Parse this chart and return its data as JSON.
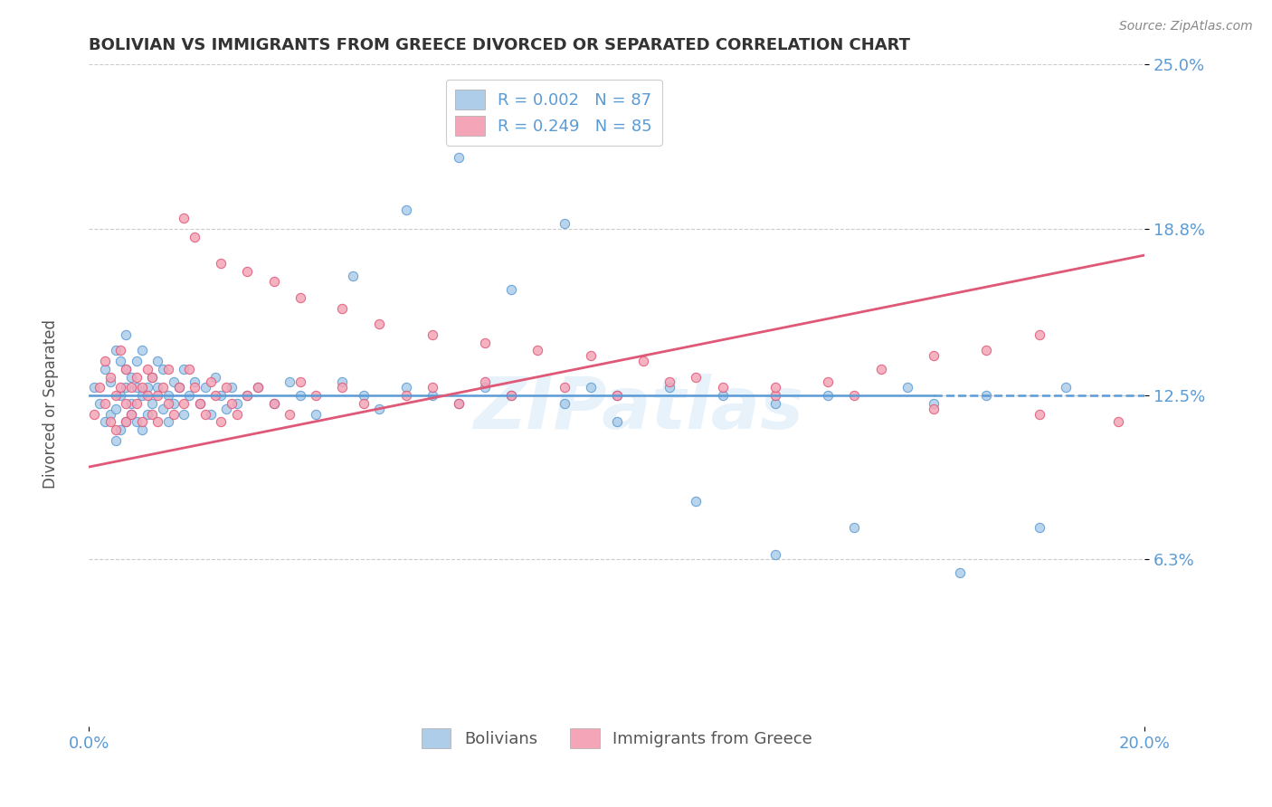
{
  "title": "BOLIVIAN VS IMMIGRANTS FROM GREECE DIVORCED OR SEPARATED CORRELATION CHART",
  "source": "Source: ZipAtlas.com",
  "ylabel": "Divorced or Separated",
  "legend_labels": [
    "Bolivians",
    "Immigrants from Greece"
  ],
  "legend_r_n": [
    {
      "R": "0.002",
      "N": "87"
    },
    {
      "R": "0.249",
      "N": "85"
    }
  ],
  "xlim": [
    0.0,
    0.2
  ],
  "ylim": [
    0.0,
    0.25
  ],
  "yticks": [
    0.063,
    0.125,
    0.188,
    0.25
  ],
  "ytick_labels": [
    "6.3%",
    "12.5%",
    "18.8%",
    "25.0%"
  ],
  "xticks": [
    0.0,
    0.2
  ],
  "xtick_labels": [
    "0.0%",
    "20.0%"
  ],
  "grid_color": "#cccccc",
  "color_blue": "#aecde8",
  "color_pink": "#f4a6b8",
  "line_blue": "#5b9bd5",
  "line_pink": "#e05878",
  "background": "#ffffff",
  "axis_label_color": "#5b9bd5",
  "watermark": "ZIPatlas",
  "blue_x": [
    0.001,
    0.002,
    0.003,
    0.003,
    0.004,
    0.004,
    0.005,
    0.005,
    0.005,
    0.006,
    0.006,
    0.006,
    0.007,
    0.007,
    0.007,
    0.007,
    0.008,
    0.008,
    0.008,
    0.009,
    0.009,
    0.009,
    0.01,
    0.01,
    0.01,
    0.011,
    0.011,
    0.012,
    0.012,
    0.013,
    0.013,
    0.014,
    0.014,
    0.015,
    0.015,
    0.016,
    0.016,
    0.017,
    0.018,
    0.018,
    0.019,
    0.02,
    0.021,
    0.022,
    0.023,
    0.024,
    0.025,
    0.026,
    0.027,
    0.028,
    0.03,
    0.032,
    0.035,
    0.038,
    0.04,
    0.043,
    0.048,
    0.052,
    0.055,
    0.06,
    0.065,
    0.07,
    0.075,
    0.08,
    0.09,
    0.095,
    0.1,
    0.11,
    0.12,
    0.13,
    0.14,
    0.155,
    0.16,
    0.17,
    0.185,
    0.05,
    0.06,
    0.07,
    0.08,
    0.09,
    0.1,
    0.115,
    0.13,
    0.145,
    0.165,
    0.18
  ],
  "blue_y": [
    0.128,
    0.122,
    0.115,
    0.135,
    0.118,
    0.13,
    0.12,
    0.108,
    0.142,
    0.125,
    0.112,
    0.138,
    0.128,
    0.115,
    0.135,
    0.148,
    0.122,
    0.132,
    0.118,
    0.128,
    0.115,
    0.138,
    0.125,
    0.112,
    0.142,
    0.128,
    0.118,
    0.132,
    0.122,
    0.128,
    0.138,
    0.12,
    0.135,
    0.125,
    0.115,
    0.13,
    0.122,
    0.128,
    0.118,
    0.135,
    0.125,
    0.13,
    0.122,
    0.128,
    0.118,
    0.132,
    0.125,
    0.12,
    0.128,
    0.122,
    0.125,
    0.128,
    0.122,
    0.13,
    0.125,
    0.118,
    0.13,
    0.125,
    0.12,
    0.128,
    0.125,
    0.122,
    0.128,
    0.125,
    0.122,
    0.128,
    0.125,
    0.128,
    0.125,
    0.122,
    0.125,
    0.128,
    0.122,
    0.125,
    0.128,
    0.17,
    0.195,
    0.215,
    0.165,
    0.19,
    0.115,
    0.085,
    0.065,
    0.075,
    0.058,
    0.075
  ],
  "pink_x": [
    0.001,
    0.002,
    0.003,
    0.003,
    0.004,
    0.004,
    0.005,
    0.005,
    0.006,
    0.006,
    0.007,
    0.007,
    0.007,
    0.008,
    0.008,
    0.009,
    0.009,
    0.01,
    0.01,
    0.011,
    0.011,
    0.012,
    0.012,
    0.013,
    0.013,
    0.014,
    0.015,
    0.015,
    0.016,
    0.017,
    0.018,
    0.019,
    0.02,
    0.021,
    0.022,
    0.023,
    0.024,
    0.025,
    0.026,
    0.027,
    0.028,
    0.03,
    0.032,
    0.035,
    0.038,
    0.04,
    0.043,
    0.048,
    0.052,
    0.06,
    0.065,
    0.07,
    0.075,
    0.08,
    0.09,
    0.1,
    0.11,
    0.12,
    0.13,
    0.14,
    0.15,
    0.16,
    0.17,
    0.18,
    0.018,
    0.02,
    0.025,
    0.03,
    0.035,
    0.04,
    0.048,
    0.055,
    0.065,
    0.075,
    0.085,
    0.095,
    0.105,
    0.115,
    0.13,
    0.145,
    0.16,
    0.18,
    0.195
  ],
  "pink_y": [
    0.118,
    0.128,
    0.122,
    0.138,
    0.115,
    0.132,
    0.125,
    0.112,
    0.128,
    0.142,
    0.122,
    0.135,
    0.115,
    0.128,
    0.118,
    0.132,
    0.122,
    0.128,
    0.115,
    0.135,
    0.125,
    0.118,
    0.132,
    0.125,
    0.115,
    0.128,
    0.122,
    0.135,
    0.118,
    0.128,
    0.122,
    0.135,
    0.128,
    0.122,
    0.118,
    0.13,
    0.125,
    0.115,
    0.128,
    0.122,
    0.118,
    0.125,
    0.128,
    0.122,
    0.118,
    0.13,
    0.125,
    0.128,
    0.122,
    0.125,
    0.128,
    0.122,
    0.13,
    0.125,
    0.128,
    0.125,
    0.13,
    0.128,
    0.125,
    0.13,
    0.135,
    0.14,
    0.142,
    0.148,
    0.192,
    0.185,
    0.175,
    0.172,
    0.168,
    0.162,
    0.158,
    0.152,
    0.148,
    0.145,
    0.142,
    0.14,
    0.138,
    0.132,
    0.128,
    0.125,
    0.12,
    0.118,
    0.115
  ],
  "blue_line_solid_end": 0.16,
  "blue_line_y_start": 0.125,
  "blue_line_y_end": 0.125,
  "pink_line_y_start": 0.098,
  "pink_line_y_end": 0.178
}
